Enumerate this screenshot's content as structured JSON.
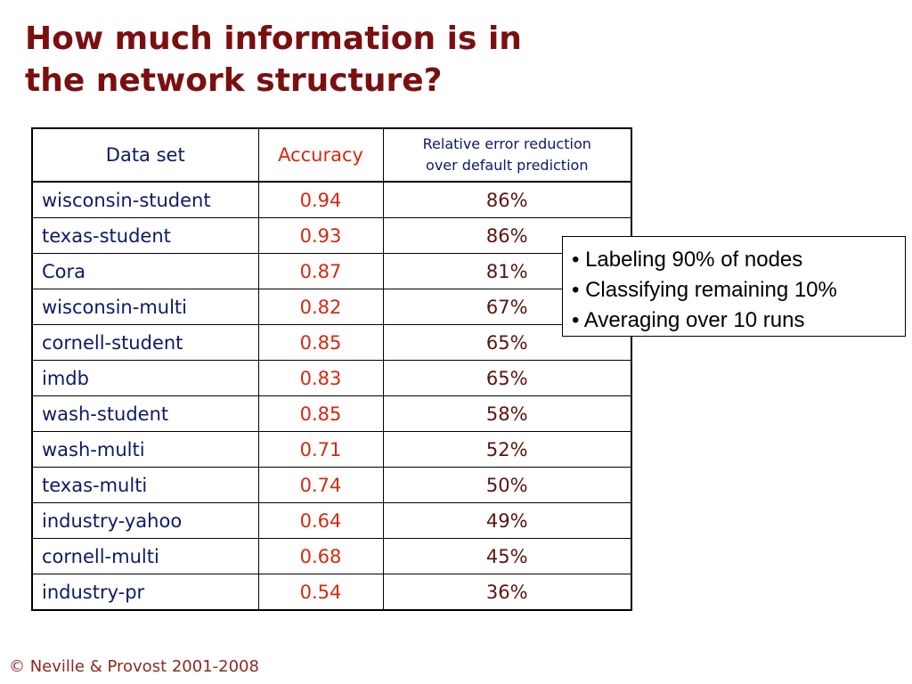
{
  "title": {
    "line1": "How much information is in",
    "line2": "the network structure?"
  },
  "table": {
    "headers": {
      "dataset": "Data set",
      "accuracy": "Accuracy",
      "relative_line1": "Relative error reduction",
      "relative_line2": "over default prediction"
    },
    "rows": [
      {
        "name": "wisconsin-student",
        "accuracy": "0.94",
        "reduction": "86%"
      },
      {
        "name": "texas-student",
        "accuracy": "0.93",
        "reduction": "86%"
      },
      {
        "name": "Cora",
        "accuracy": "0.87",
        "reduction": "81%"
      },
      {
        "name": "wisconsin-multi",
        "accuracy": "0.82",
        "reduction": "67%"
      },
      {
        "name": "cornell-student",
        "accuracy": "0.85",
        "reduction": "65%"
      },
      {
        "name": "imdb",
        "accuracy": "0.83",
        "reduction": "65%"
      },
      {
        "name": "wash-student",
        "accuracy": "0.85",
        "reduction": "58%"
      },
      {
        "name": "wash-multi",
        "accuracy": "0.71",
        "reduction": "52%"
      },
      {
        "name": "texas-multi",
        "accuracy": "0.74",
        "reduction": "50%"
      },
      {
        "name": "industry-yahoo",
        "accuracy": "0.64",
        "reduction": "49%"
      },
      {
        "name": "cornell-multi",
        "accuracy": "0.68",
        "reduction": "45%"
      },
      {
        "name": "industry-pr",
        "accuracy": "0.54",
        "reduction": "36%"
      }
    ]
  },
  "notes": [
    "• Labeling 90% of nodes",
    "• Classifying remaining 10%",
    "• Averaging over 10 runs"
  ],
  "footer": "© Neville & Provost 2001-2008",
  "colors": {
    "title": "#7b0f0f",
    "dataset_text": "#0d1a66",
    "accuracy_text": "#d42a10",
    "reduction_text": "#5a1410",
    "footer": "#8b2a22"
  }
}
